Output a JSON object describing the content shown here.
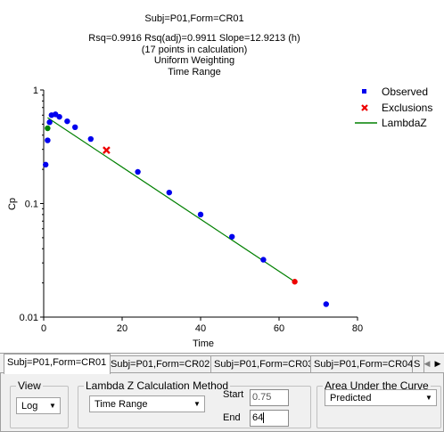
{
  "chart": {
    "title_lines": [
      "Subj=P01,Form=CR01",
      "Rsq=0.9916 Rsq(adj)=0.9911 Slope=12.9213 (h)",
      "(17 points in calculation)",
      "Uniform Weighting",
      "Time Range"
    ],
    "legend": {
      "observed": "Observed",
      "exclusions": "Exclusions",
      "lambdaz": "LambdaZ"
    },
    "colors": {
      "observed": "#0000ee",
      "excluded": "#ee0000",
      "lambdaz": "#008000",
      "first_point": "#008000"
    }
  },
  "chart_data": {
    "type": "scatter",
    "xlabel": "Time",
    "ylabel": "Cp",
    "xlim": [
      0,
      80
    ],
    "ylim": [
      0.01,
      1
    ],
    "y_scale": "log",
    "x_ticks": [
      "0",
      "20",
      "40",
      "60",
      "80"
    ],
    "y_ticks": [
      "1",
      "0.1",
      "0.01"
    ],
    "legend_position": "top-right",
    "observed": {
      "name": "Observed",
      "x": [
        0.5,
        1,
        1.5,
        2,
        3,
        4,
        6,
        8,
        12,
        24,
        32,
        40,
        48,
        56,
        72
      ],
      "y": [
        0.22,
        0.36,
        0.52,
        0.6,
        0.61,
        0.58,
        0.53,
        0.47,
        0.37,
        0.19,
        0.125,
        0.08,
        0.051,
        0.032,
        0.013
      ]
    },
    "first_point": {
      "x": [
        1
      ],
      "y": [
        0.46
      ]
    },
    "exclusions": {
      "name": "Exclusions",
      "x": [
        16
      ],
      "y": [
        0.295
      ]
    },
    "excluded_point": {
      "x": [
        64
      ],
      "y": [
        0.0205
      ]
    },
    "lambdaz": {
      "name": "LambdaZ",
      "x": [
        1,
        64
      ],
      "y": [
        0.57,
        0.0205
      ]
    }
  },
  "tabs": [
    "Subj=P01,Form=CR01",
    "Subj=P01,Form=CR02",
    "Subj=P01,Form=CR03",
    "Subj=P01,Form=CR04",
    "S"
  ],
  "panel": {
    "view": {
      "title": "View",
      "value": "Log"
    },
    "lambda": {
      "title": "Lambda Z Calculation Method",
      "method": "Time Range",
      "start_label": "Start",
      "start_value": "0.75",
      "end_label": "End",
      "end_value": "64"
    },
    "auc": {
      "title": "Area Under the Curve",
      "value": "Predicted"
    }
  }
}
